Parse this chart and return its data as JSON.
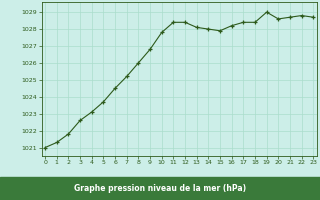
{
  "x": [
    0,
    1,
    2,
    3,
    4,
    5,
    6,
    7,
    8,
    9,
    10,
    11,
    12,
    13,
    14,
    15,
    16,
    17,
    18,
    19,
    20,
    21,
    22,
    23
  ],
  "y": [
    1021.0,
    1021.3,
    1021.8,
    1022.6,
    1023.1,
    1023.7,
    1024.5,
    1025.2,
    1026.0,
    1026.8,
    1027.8,
    1028.4,
    1028.4,
    1028.1,
    1028.0,
    1027.9,
    1028.2,
    1028.4,
    1028.4,
    1029.0,
    1028.6,
    1028.7,
    1028.8,
    1028.7
  ],
  "ylim": [
    1020.5,
    1029.6
  ],
  "xlim": [
    -0.3,
    23.3
  ],
  "yticks": [
    1021,
    1022,
    1023,
    1024,
    1025,
    1026,
    1027,
    1028,
    1029
  ],
  "xticks": [
    0,
    1,
    2,
    3,
    4,
    5,
    6,
    7,
    8,
    9,
    10,
    11,
    12,
    13,
    14,
    15,
    16,
    17,
    18,
    19,
    20,
    21,
    22,
    23
  ],
  "line_color": "#2d5a1b",
  "marker_color": "#2d5a1b",
  "bg_color": "#cceee8",
  "grid_color": "#aaddcc",
  "xlabel": "Graphe pression niveau de la mer (hPa)",
  "xlabel_color": "#2d5a1b",
  "tick_color": "#2d5a1b",
  "border_color": "#2d5a1b",
  "xlabel_bg": "#3a7a3a",
  "xlabel_text_color": "#ffffff"
}
